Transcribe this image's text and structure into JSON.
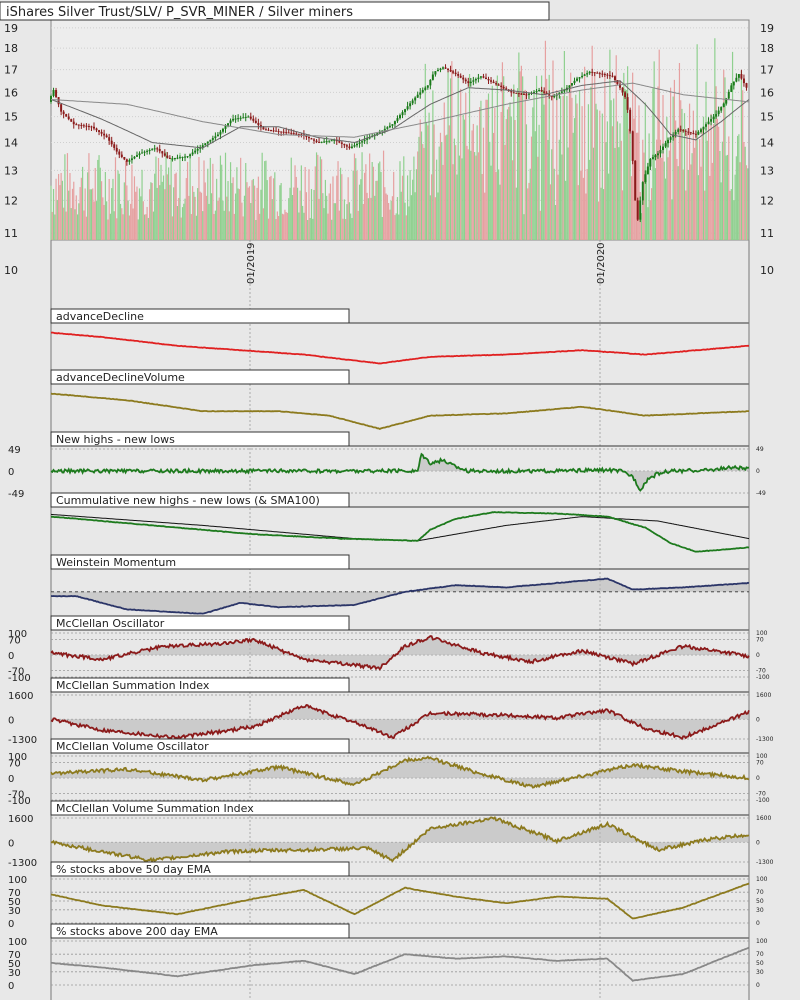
{
  "title": "iShares Silver Trust/SLV/ P_SVR_MINER / Silver miners",
  "colors": {
    "background": "#e8e8e8",
    "up_candle": "#1a7a1a",
    "down_candle": "#8b1a1a",
    "volume_up": "#8fd08f",
    "volume_down": "#e6a0a0",
    "advance_decline": "#e02020",
    "olive": "#8c7a1e",
    "green_line": "#1d7a1d",
    "navy": "#2b3568",
    "maroon": "#8b1a1a",
    "gray_line": "#888888",
    "fill_gray": "#b8b8b8"
  },
  "chart_data": [
    {
      "type": "candlestick",
      "name": "main",
      "title": "iShares Silver Trust/SLV/ P_SVR_MINER / Silver miners",
      "y_ticks": [
        11,
        12,
        13,
        14,
        15,
        16,
        17,
        18,
        19
      ],
      "y_ticks_below": [
        10
      ],
      "x_ticks": [
        "01/2019",
        "01/2020"
      ],
      "scale": "log",
      "anchors": [
        [
          0,
          15.6
        ],
        [
          4,
          16.1
        ],
        [
          10,
          15.2
        ],
        [
          20,
          14.7
        ],
        [
          34,
          14.6
        ],
        [
          46,
          14.2
        ],
        [
          55,
          13.6
        ],
        [
          62,
          13.3
        ],
        [
          72,
          13.6
        ],
        [
          85,
          13.8
        ],
        [
          95,
          13.4
        ],
        [
          110,
          13.5
        ],
        [
          122,
          13.9
        ],
        [
          134,
          14.3
        ],
        [
          145,
          14.9
        ],
        [
          158,
          15.0
        ],
        [
          170,
          14.5
        ],
        [
          185,
          14.4
        ],
        [
          200,
          14.3
        ],
        [
          213,
          14.0
        ],
        [
          226,
          14.1
        ],
        [
          238,
          13.8
        ],
        [
          250,
          14.1
        ],
        [
          262,
          14.4
        ],
        [
          272,
          14.7
        ],
        [
          282,
          15.3
        ],
        [
          292,
          15.9
        ],
        [
          300,
          16.3
        ],
        [
          305,
          16.9
        ],
        [
          312,
          17.1
        ],
        [
          322,
          16.8
        ],
        [
          332,
          16.4
        ],
        [
          342,
          16.7
        ],
        [
          352,
          16.4
        ],
        [
          366,
          16.0
        ],
        [
          378,
          15.9
        ],
        [
          388,
          16.1
        ],
        [
          398,
          15.8
        ],
        [
          408,
          16.1
        ],
        [
          418,
          16.6
        ],
        [
          428,
          16.9
        ],
        [
          438,
          16.8
        ],
        [
          446,
          16.7
        ],
        [
          452,
          16.2
        ],
        [
          457,
          15.7
        ],
        [
          461,
          14.0
        ],
        [
          464,
          12.0
        ],
        [
          466,
          11.4
        ],
        [
          470,
          12.6
        ],
        [
          476,
          13.4
        ],
        [
          482,
          13.6
        ],
        [
          490,
          14.1
        ],
        [
          498,
          14.5
        ],
        [
          505,
          14.4
        ],
        [
          512,
          14.3
        ],
        [
          520,
          14.7
        ],
        [
          528,
          15.1
        ],
        [
          535,
          15.6
        ],
        [
          540,
          16.3
        ],
        [
          546,
          16.8
        ],
        [
          552,
          16.2
        ]
      ],
      "overlays": [
        {
          "name": "SMA50",
          "anchors": [
            [
              0,
              15.7
            ],
            [
              40,
              14.9
            ],
            [
              80,
              14.0
            ],
            [
              120,
              13.8
            ],
            [
              150,
              14.6
            ],
            [
              180,
              14.6
            ],
            [
              210,
              14.2
            ],
            [
              240,
              14.0
            ],
            [
              270,
              14.5
            ],
            [
              300,
              15.5
            ],
            [
              330,
              16.2
            ],
            [
              360,
              16.1
            ],
            [
              390,
              15.9
            ],
            [
              420,
              16.3
            ],
            [
              450,
              16.5
            ],
            [
              470,
              15.5
            ],
            [
              490,
              14.3
            ],
            [
              510,
              14.1
            ],
            [
              530,
              14.8
            ],
            [
              552,
              15.7
            ]
          ]
        },
        {
          "name": "SMA200",
          "anchors": [
            [
              0,
              15.7
            ],
            [
              60,
              15.5
            ],
            [
              120,
              14.8
            ],
            [
              180,
              14.3
            ],
            [
              240,
              14.2
            ],
            [
              300,
              14.8
            ],
            [
              360,
              15.5
            ],
            [
              420,
              16.1
            ],
            [
              460,
              16.4
            ],
            [
              500,
              15.9
            ],
            [
              552,
              15.6
            ]
          ]
        }
      ]
    },
    {
      "type": "line",
      "name": "advanceDecline",
      "title": "advanceDecline",
      "anchors": [
        [
          0,
          0.85
        ],
        [
          40,
          0.75
        ],
        [
          100,
          0.55
        ],
        [
          150,
          0.45
        ],
        [
          200,
          0.35
        ],
        [
          260,
          0.15
        ],
        [
          300,
          0.3
        ],
        [
          360,
          0.35
        ],
        [
          420,
          0.45
        ],
        [
          470,
          0.35
        ],
        [
          552,
          0.55
        ]
      ]
    },
    {
      "type": "line",
      "name": "advanceDeclineVolume",
      "title": "advanceDeclineVolume",
      "anchors": [
        [
          0,
          0.85
        ],
        [
          60,
          0.7
        ],
        [
          120,
          0.45
        ],
        [
          180,
          0.45
        ],
        [
          220,
          0.35
        ],
        [
          260,
          0.05
        ],
        [
          300,
          0.35
        ],
        [
          360,
          0.4
        ],
        [
          420,
          0.55
        ],
        [
          470,
          0.35
        ],
        [
          552,
          0.45
        ]
      ]
    },
    {
      "type": "area",
      "name": "newHighsLows",
      "title": "New highs - new lows",
      "y_ticks": [
        49,
        0,
        -49
      ],
      "anchors": [
        [
          0,
          0
        ],
        [
          150,
          0
        ],
        [
          290,
          0
        ],
        [
          293,
          38
        ],
        [
          300,
          18
        ],
        [
          310,
          24
        ],
        [
          320,
          10
        ],
        [
          330,
          0
        ],
        [
          400,
          0
        ],
        [
          440,
          2
        ],
        [
          450,
          0
        ],
        [
          460,
          -12
        ],
        [
          466,
          -42
        ],
        [
          472,
          -18
        ],
        [
          480,
          -6
        ],
        [
          490,
          0
        ],
        [
          520,
          2
        ],
        [
          540,
          8
        ],
        [
          552,
          4
        ]
      ]
    },
    {
      "type": "line",
      "name": "cumulativeNewHighsLows",
      "title": "Cummulative new highs - new lows (& SMA100)",
      "anchors": [
        [
          0,
          0.85
        ],
        [
          80,
          0.65
        ],
        [
          160,
          0.45
        ],
        [
          230,
          0.35
        ],
        [
          290,
          0.3
        ],
        [
          300,
          0.55
        ],
        [
          320,
          0.8
        ],
        [
          350,
          0.95
        ],
        [
          400,
          0.92
        ],
        [
          440,
          0.85
        ],
        [
          470,
          0.6
        ],
        [
          490,
          0.25
        ],
        [
          510,
          0.05
        ],
        [
          552,
          0.15
        ]
      ],
      "overlay": [
        [
          0,
          0.9
        ],
        [
          120,
          0.65
        ],
        [
          240,
          0.35
        ],
        [
          290,
          0.3
        ],
        [
          360,
          0.65
        ],
        [
          420,
          0.85
        ],
        [
          480,
          0.75
        ],
        [
          552,
          0.35
        ]
      ]
    },
    {
      "type": "area",
      "name": "weinsteinMomentum",
      "title": "Weinstein Momentum",
      "baseline": 0.55,
      "anchors": [
        [
          20,
          0.45
        ],
        [
          60,
          0.15
        ],
        [
          120,
          0.05
        ],
        [
          150,
          0.3
        ],
        [
          180,
          0.2
        ],
        [
          240,
          0.25
        ],
        [
          280,
          0.55
        ],
        [
          320,
          0.7
        ],
        [
          360,
          0.65
        ],
        [
          400,
          0.75
        ],
        [
          440,
          0.85
        ],
        [
          460,
          0.6
        ],
        [
          500,
          0.65
        ],
        [
          552,
          0.75
        ]
      ]
    },
    {
      "type": "area",
      "name": "mcclellanOscillator",
      "title": "McClellan Oscillator",
      "y_ticks": [
        100,
        70,
        0,
        -70,
        -100
      ],
      "anchors": [
        [
          0,
          10
        ],
        [
          40,
          -20
        ],
        [
          90,
          40
        ],
        [
          130,
          50
        ],
        [
          160,
          70
        ],
        [
          200,
          -20
        ],
        [
          260,
          -60
        ],
        [
          280,
          40
        ],
        [
          300,
          80
        ],
        [
          340,
          10
        ],
        [
          380,
          -30
        ],
        [
          420,
          20
        ],
        [
          460,
          -40
        ],
        [
          500,
          40
        ],
        [
          552,
          -5
        ]
      ]
    },
    {
      "type": "area",
      "name": "mcclellanSummation",
      "title": "McClellan Summation Index",
      "y_ticks": [
        1600,
        0,
        -1300
      ],
      "anchors": [
        [
          0,
          0
        ],
        [
          40,
          -700
        ],
        [
          100,
          -1200
        ],
        [
          160,
          -500
        ],
        [
          200,
          900
        ],
        [
          250,
          -500
        ],
        [
          270,
          -1200
        ],
        [
          300,
          400
        ],
        [
          350,
          300
        ],
        [
          400,
          100
        ],
        [
          440,
          600
        ],
        [
          470,
          -600
        ],
        [
          500,
          -1200
        ],
        [
          552,
          500
        ]
      ]
    },
    {
      "type": "area",
      "name": "mcclellanVolumeOscillator",
      "title": "McClellan Volume Oscillator",
      "y_ticks": [
        100,
        70,
        0,
        -70,
        -100
      ],
      "anchors": [
        [
          0,
          20
        ],
        [
          60,
          40
        ],
        [
          120,
          -10
        ],
        [
          180,
          50
        ],
        [
          240,
          -30
        ],
        [
          280,
          80
        ],
        [
          300,
          90
        ],
        [
          340,
          20
        ],
        [
          380,
          -40
        ],
        [
          420,
          10
        ],
        [
          460,
          60
        ],
        [
          500,
          30
        ],
        [
          552,
          0
        ]
      ]
    },
    {
      "type": "area",
      "name": "mcclellanVolumeSummation",
      "title": "McClellan Volume Summation Index",
      "y_ticks": [
        1600,
        0,
        -1300
      ],
      "anchors": [
        [
          0,
          0
        ],
        [
          40,
          -600
        ],
        [
          80,
          -1200
        ],
        [
          140,
          -600
        ],
        [
          200,
          -500
        ],
        [
          250,
          -400
        ],
        [
          270,
          -1200
        ],
        [
          300,
          900
        ],
        [
          350,
          1600
        ],
        [
          400,
          100
        ],
        [
          440,
          1200
        ],
        [
          480,
          -500
        ],
        [
          520,
          200
        ],
        [
          552,
          500
        ]
      ]
    },
    {
      "type": "line",
      "name": "pctAbove50ema",
      "title": "% stocks above 50 day EMA",
      "y_ticks": [
        100,
        70,
        50,
        30,
        0
      ],
      "anchors": [
        [
          0,
          65
        ],
        [
          40,
          40
        ],
        [
          100,
          20
        ],
        [
          160,
          55
        ],
        [
          200,
          75
        ],
        [
          240,
          20
        ],
        [
          280,
          80
        ],
        [
          320,
          60
        ],
        [
          360,
          45
        ],
        [
          400,
          60
        ],
        [
          440,
          55
        ],
        [
          460,
          10
        ],
        [
          500,
          35
        ],
        [
          552,
          90
        ]
      ]
    },
    {
      "type": "line",
      "name": "pctAbove200ema",
      "title": "% stocks above 200 day EMA",
      "y_ticks": [
        100,
        70,
        50,
        30,
        0
      ],
      "anchors": [
        [
          0,
          50
        ],
        [
          40,
          40
        ],
        [
          100,
          20
        ],
        [
          160,
          45
        ],
        [
          200,
          55
        ],
        [
          240,
          25
        ],
        [
          280,
          70
        ],
        [
          320,
          60
        ],
        [
          360,
          65
        ],
        [
          400,
          55
        ],
        [
          440,
          60
        ],
        [
          460,
          10
        ],
        [
          500,
          25
        ],
        [
          552,
          85
        ]
      ]
    }
  ]
}
